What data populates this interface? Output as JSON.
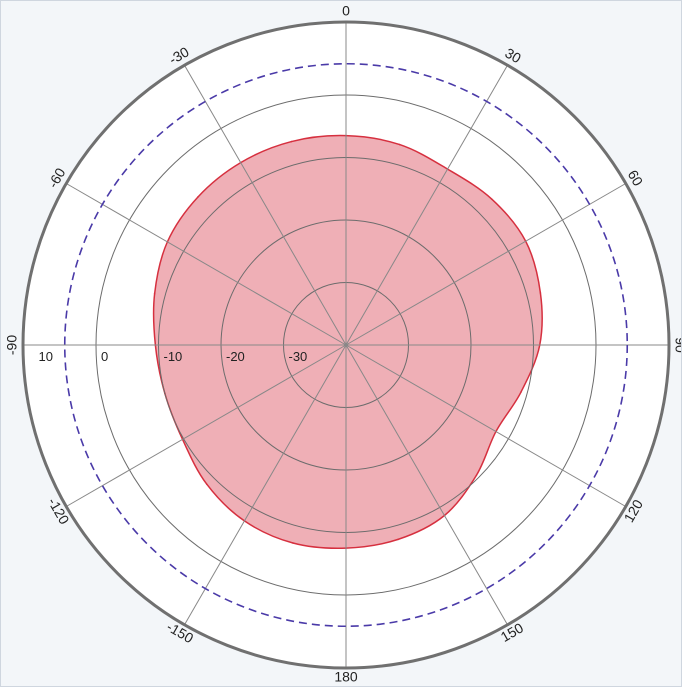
{
  "chart_data": {
    "type": "polar-area",
    "angle_ticks": [
      {
        "angle": 0,
        "label": "0"
      },
      {
        "angle": 30,
        "label": "30"
      },
      {
        "angle": 60,
        "label": "60"
      },
      {
        "angle": 90,
        "label": "90"
      },
      {
        "angle": 120,
        "label": "120"
      },
      {
        "angle": 150,
        "label": "150"
      },
      {
        "angle": 180,
        "label": "180"
      },
      {
        "angle": -150,
        "label": "-150"
      },
      {
        "angle": -120,
        "label": "-120"
      },
      {
        "angle": -90,
        "label": "-90"
      },
      {
        "angle": -60,
        "label": "-60"
      },
      {
        "angle": -30,
        "label": "-30"
      }
    ],
    "radial_ticks": [
      {
        "value": 10,
        "label": "10"
      },
      {
        "value": 0,
        "label": "0"
      },
      {
        "value": -10,
        "label": "-10"
      },
      {
        "value": -20,
        "label": "-20"
      },
      {
        "value": -30,
        "label": "-30"
      }
    ],
    "radial_range": [
      -40,
      10
    ],
    "reference_circle_value": 5,
    "series": [
      {
        "color": "#e47a85",
        "points": [
          {
            "angle": 0,
            "value": -6.5
          },
          {
            "angle": 15,
            "value": -6.8
          },
          {
            "angle": 30,
            "value": -7.5
          },
          {
            "angle": 45,
            "value": -7.0
          },
          {
            "angle": 60,
            "value": -6.8
          },
          {
            "angle": 75,
            "value": -7.8
          },
          {
            "angle": 90,
            "value": -9.0
          },
          {
            "angle": 105,
            "value": -11.0
          },
          {
            "angle": 120,
            "value": -12.3
          },
          {
            "angle": 135,
            "value": -10.5
          },
          {
            "angle": 150,
            "value": -8.5
          },
          {
            "angle": 165,
            "value": -7.8
          },
          {
            "angle": 180,
            "value": -7.5
          },
          {
            "angle": -165,
            "value": -7.2
          },
          {
            "angle": -150,
            "value": -7.5
          },
          {
            "angle": -135,
            "value": -8.5
          },
          {
            "angle": -120,
            "value": -9.8
          },
          {
            "angle": -105,
            "value": -10.0
          },
          {
            "angle": -90,
            "value": -9.5
          },
          {
            "angle": -75,
            "value": -8.3
          },
          {
            "angle": -60,
            "value": -7.0
          },
          {
            "angle": -45,
            "value": -6.5
          },
          {
            "angle": -30,
            "value": -6.3
          },
          {
            "angle": -15,
            "value": -6.3
          }
        ]
      }
    ],
    "grid": true
  }
}
